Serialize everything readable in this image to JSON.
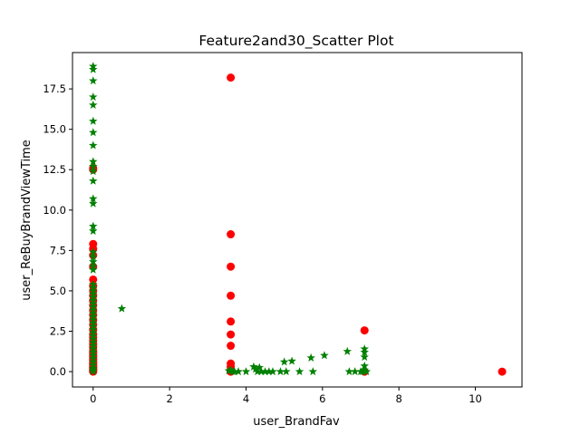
{
  "chart_data": {
    "type": "scatter",
    "title": "Feature2and30_Scatter Plot",
    "xlabel": "user_BrandFav",
    "ylabel": "user_ReBuyBrandViewTime",
    "xlim": [
      -0.54,
      11.22
    ],
    "ylim": [
      -0.95,
      19.75
    ],
    "xticks": [
      0,
      2,
      4,
      6,
      8,
      10
    ],
    "yticks": [
      0.0,
      2.5,
      5.0,
      7.5,
      10.0,
      12.5,
      15.0,
      17.5
    ],
    "xtick_labels": [
      "0",
      "2",
      "4",
      "6",
      "8",
      "10"
    ],
    "ytick_labels": [
      "0.0",
      "2.5",
      "5.0",
      "7.5",
      "10.0",
      "12.5",
      "15.0",
      "17.5"
    ],
    "grid": false,
    "legend": "none",
    "series": [
      {
        "marker": "circle",
        "color": "#ff0000",
        "x": [
          0,
          0,
          0,
          0,
          0,
          0,
          0,
          0,
          0,
          0,
          0,
          0,
          0,
          0,
          0,
          0,
          0,
          0,
          0,
          0,
          0,
          0,
          0,
          0,
          0,
          0,
          0,
          0,
          0,
          0,
          0,
          0,
          0,
          0,
          0,
          0,
          0,
          0,
          0,
          0,
          3.6,
          3.6,
          3.6,
          3.6,
          3.6,
          3.6,
          3.6,
          3.6,
          3.6,
          3.6,
          3.6,
          3.6,
          7.1,
          7.1,
          7.1,
          10.7
        ],
        "y": [
          0.0,
          0.05,
          0.1,
          0.15,
          0.2,
          0.3,
          0.4,
          0.5,
          0.6,
          0.7,
          0.8,
          0.9,
          1.0,
          1.1,
          1.2,
          1.3,
          1.5,
          1.7,
          1.9,
          2.1,
          2.3,
          2.6,
          2.9,
          3.2,
          3.5,
          3.8,
          4.1,
          4.4,
          4.7,
          5.0,
          5.3,
          5.7,
          6.5,
          7.2,
          7.6,
          7.9,
          12.5,
          12.6,
          0.25,
          0.45,
          18.2,
          8.5,
          6.5,
          4.7,
          3.1,
          2.3,
          1.6,
          0.5,
          0.3,
          0.1,
          0.0,
          0.0,
          2.55,
          0.0,
          0.0,
          0.0
        ]
      },
      {
        "marker": "star",
        "color": "#008000",
        "x": [
          0,
          0,
          0,
          0,
          0,
          0,
          0,
          0,
          0,
          0,
          0,
          0,
          0,
          0,
          0,
          0,
          0,
          0,
          0,
          0,
          0,
          0,
          0,
          0,
          0,
          0,
          0,
          0,
          0,
          0,
          0,
          0,
          0,
          0,
          0,
          0,
          0,
          0,
          0,
          0,
          0,
          0,
          0,
          0,
          0,
          0,
          0,
          0,
          0,
          0,
          0.75,
          3.55,
          3.6,
          3.65,
          3.7,
          3.8,
          4.0,
          4.2,
          4.25,
          4.3,
          4.35,
          4.4,
          4.5,
          4.6,
          4.7,
          4.9,
          5.0,
          5.05,
          5.2,
          5.4,
          5.7,
          5.75,
          6.05,
          6.65,
          6.7,
          6.85,
          7.0,
          7.05,
          7.1,
          7.1,
          7.1,
          7.1,
          7.1,
          7.15
        ],
        "y": [
          18.9,
          18.7,
          18.0,
          17.0,
          16.5,
          15.5,
          14.8,
          14.0,
          13.0,
          12.7,
          12.4,
          11.8,
          10.7,
          10.4,
          9.0,
          8.7,
          7.4,
          7.1,
          6.8,
          6.5,
          6.3,
          5.4,
          5.2,
          5.0,
          4.8,
          4.6,
          4.4,
          4.2,
          4.0,
          3.8,
          3.6,
          3.4,
          3.2,
          3.0,
          2.8,
          2.6,
          2.4,
          2.2,
          2.0,
          1.8,
          1.6,
          1.4,
          1.2,
          1.0,
          0.8,
          0.6,
          0.4,
          0.2,
          0.1,
          0.0,
          3.9,
          0.05,
          0.1,
          0.0,
          0.0,
          0.0,
          0.0,
          0.3,
          0.15,
          0.0,
          0.25,
          0.0,
          0.0,
          0.0,
          0.0,
          0.0,
          0.6,
          0.0,
          0.65,
          0.0,
          0.85,
          0.0,
          1.0,
          1.25,
          0.0,
          0.0,
          0.0,
          0.0,
          1.4,
          1.2,
          0.9,
          0.35,
          0.1,
          0.0
        ]
      }
    ]
  }
}
